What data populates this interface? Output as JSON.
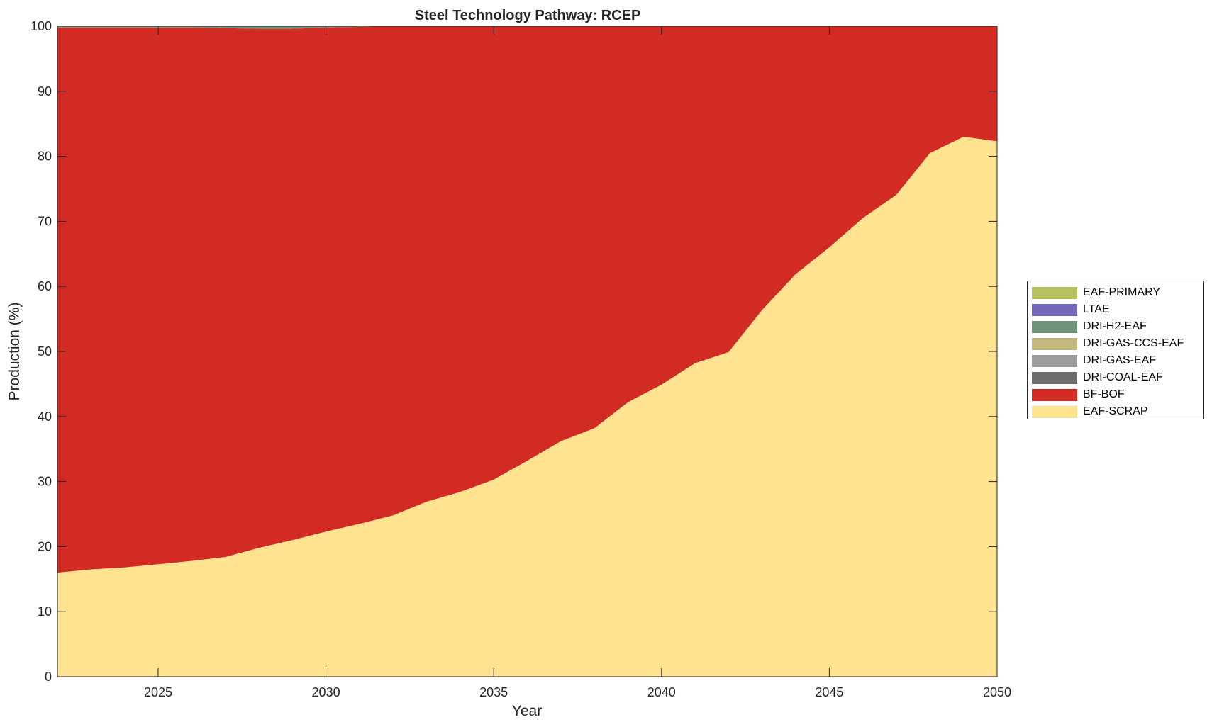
{
  "chart_data": {
    "type": "area",
    "stacked": true,
    "title": "Steel Technology Pathway: RCEP",
    "xlabel": "Year",
    "ylabel": "Production (%)",
    "xlim": [
      2022,
      2050
    ],
    "ylim": [
      0,
      100
    ],
    "xticks": [
      2025,
      2030,
      2035,
      2040,
      2045,
      2050
    ],
    "yticks": [
      0,
      10,
      20,
      30,
      40,
      50,
      60,
      70,
      80,
      90,
      100
    ],
    "grid": false,
    "legend_position": "right",
    "x": [
      2022,
      2023,
      2024,
      2025,
      2026,
      2027,
      2028,
      2029,
      2030,
      2031,
      2032,
      2033,
      2034,
      2035,
      2036,
      2037,
      2038,
      2039,
      2040,
      2041,
      2042,
      2043,
      2044,
      2045,
      2046,
      2047,
      2048,
      2049,
      2050
    ],
    "series": [
      {
        "name": "EAF-SCRAP",
        "color": "#FFE391",
        "values": [
          16.0,
          16.5,
          16.8,
          17.3,
          17.8,
          18.4,
          19.8,
          21.0,
          22.3,
          23.5,
          24.8,
          26.9,
          28.4,
          30.3,
          33.2,
          36.2,
          38.2,
          42.2,
          44.9,
          48.2,
          49.9,
          56.4,
          61.9,
          66.0,
          70.5,
          74.1,
          80.5,
          83.0,
          82.3
        ]
      },
      {
        "name": "BF-BOF",
        "color": "#D22B24",
        "values": [
          83.8,
          83.3,
          83.0,
          82.5,
          82.0,
          81.3,
          79.8,
          78.6,
          77.5,
          76.4,
          75.2,
          73.1,
          71.6,
          69.7,
          66.8,
          63.8,
          61.8,
          57.8,
          55.1,
          51.8,
          50.1,
          43.6,
          38.1,
          34.0,
          29.5,
          25.9,
          19.5,
          17.0,
          17.7
        ]
      },
      {
        "name": "DRI-COAL-EAF",
        "color": "#6C6C6C",
        "values": [
          0,
          0,
          0,
          0,
          0,
          0,
          0,
          0,
          0,
          0,
          0,
          0,
          0,
          0,
          0,
          0,
          0,
          0,
          0,
          0,
          0,
          0,
          0,
          0,
          0,
          0,
          0,
          0,
          0
        ]
      },
      {
        "name": "DRI-GAS-EAF",
        "color": "#9E9E9E",
        "values": [
          0,
          0,
          0,
          0,
          0,
          0,
          0,
          0,
          0,
          0,
          0,
          0,
          0,
          0,
          0,
          0,
          0,
          0,
          0,
          0,
          0,
          0,
          0,
          0,
          0,
          0,
          0,
          0,
          0
        ]
      },
      {
        "name": "DRI-GAS-CCS-EAF",
        "color": "#C4BA80",
        "values": [
          0,
          0,
          0,
          0,
          0,
          0,
          0,
          0,
          0,
          0,
          0,
          0,
          0,
          0,
          0,
          0,
          0,
          0,
          0,
          0,
          0,
          0,
          0,
          0,
          0,
          0,
          0,
          0,
          0
        ]
      },
      {
        "name": "DRI-H2-EAF",
        "color": "#6E927A",
        "values": [
          0.2,
          0.2,
          0.2,
          0.2,
          0.2,
          0.3,
          0.4,
          0.4,
          0.2,
          0.1,
          0.0,
          0.0,
          0.0,
          0.0,
          0.0,
          0.0,
          0.0,
          0.0,
          0.0,
          0.0,
          0.0,
          0.0,
          0.0,
          0.0,
          0.0,
          0.0,
          0.0,
          0.0,
          0.0
        ]
      },
      {
        "name": "LTAE",
        "color": "#7468BB",
        "values": [
          0,
          0,
          0,
          0,
          0,
          0,
          0,
          0,
          0,
          0,
          0,
          0,
          0,
          0,
          0,
          0,
          0,
          0,
          0,
          0,
          0,
          0,
          0,
          0,
          0,
          0,
          0,
          0,
          0
        ]
      },
      {
        "name": "EAF-PRIMARY",
        "color": "#B7C263",
        "values": [
          0,
          0,
          0,
          0,
          0,
          0,
          0,
          0,
          0,
          0,
          0,
          0,
          0,
          0,
          0,
          0,
          0,
          0,
          0,
          0,
          0,
          0,
          0,
          0,
          0,
          0,
          0,
          0,
          0
        ]
      }
    ]
  }
}
